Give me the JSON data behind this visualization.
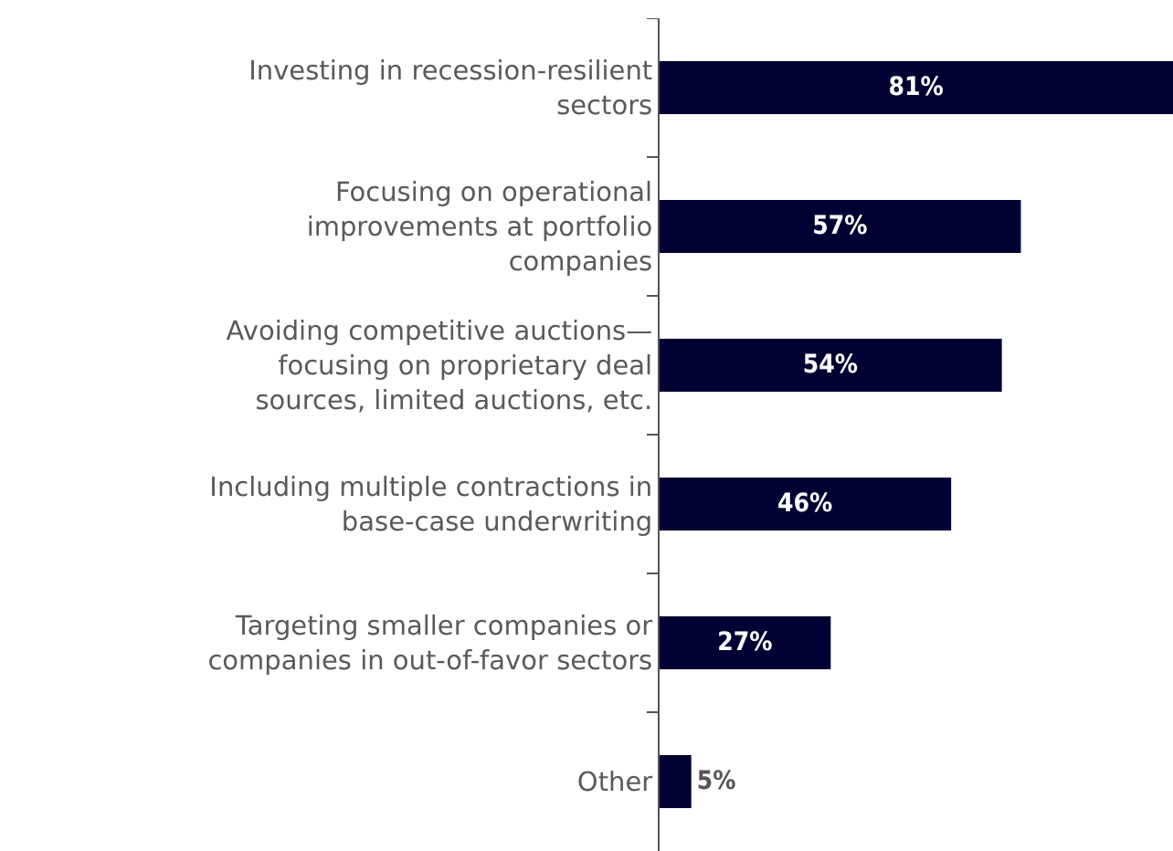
{
  "chart_data": {
    "type": "bar",
    "orientation": "horizontal",
    "categories": [
      "Investing in recession-resilient sectors",
      "Focusing on operational improvements at portfolio companies",
      "Avoiding competitive auctions—focusing on proprietary deal sources, limited auctions, etc.",
      "Including multiple contractions in base-case underwriting",
      "Targeting smaller companies or companies in out-of-favor sectors",
      "Other"
    ],
    "values": [
      81,
      57,
      54,
      46,
      27,
      5
    ],
    "value_labels": [
      "81%",
      "57%",
      "54%",
      "46%",
      "27%",
      "5%"
    ],
    "color": "#000033"
  }
}
